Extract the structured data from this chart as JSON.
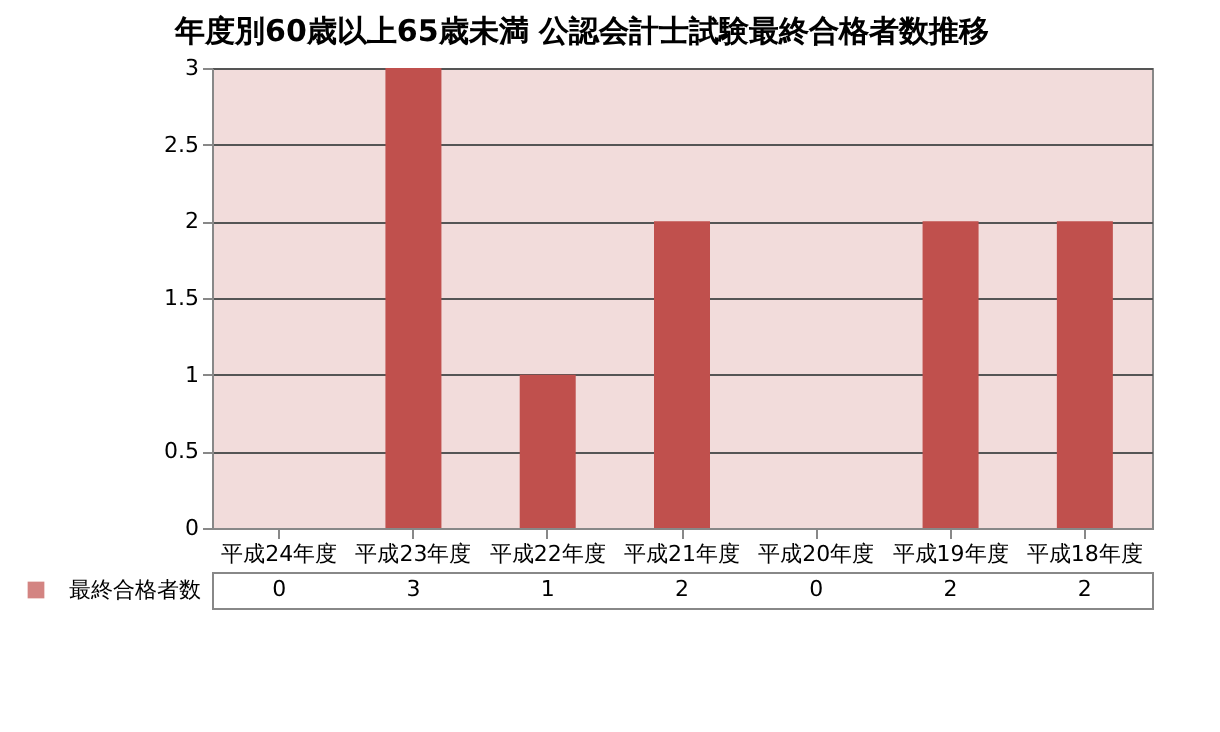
{
  "chart_data": {
    "type": "bar",
    "title": "年度別60歳以上65歳未満 公認会計士試験最終合格者数推移",
    "categories": [
      "平成24年度",
      "平成23年度",
      "平成22年度",
      "平成21年度",
      "平成20年度",
      "平成19年度",
      "平成18年度"
    ],
    "series": [
      {
        "name": "最終合格者数",
        "color": "#c0504d",
        "values": [
          0,
          3,
          1,
          2,
          0,
          2,
          2
        ]
      }
    ],
    "ylim": [
      0,
      3
    ],
    "yticks": [
      0,
      0.5,
      1,
      1.5,
      2,
      2.5,
      3
    ],
    "grid": "y",
    "legend": "bottom",
    "data_labels": true
  }
}
